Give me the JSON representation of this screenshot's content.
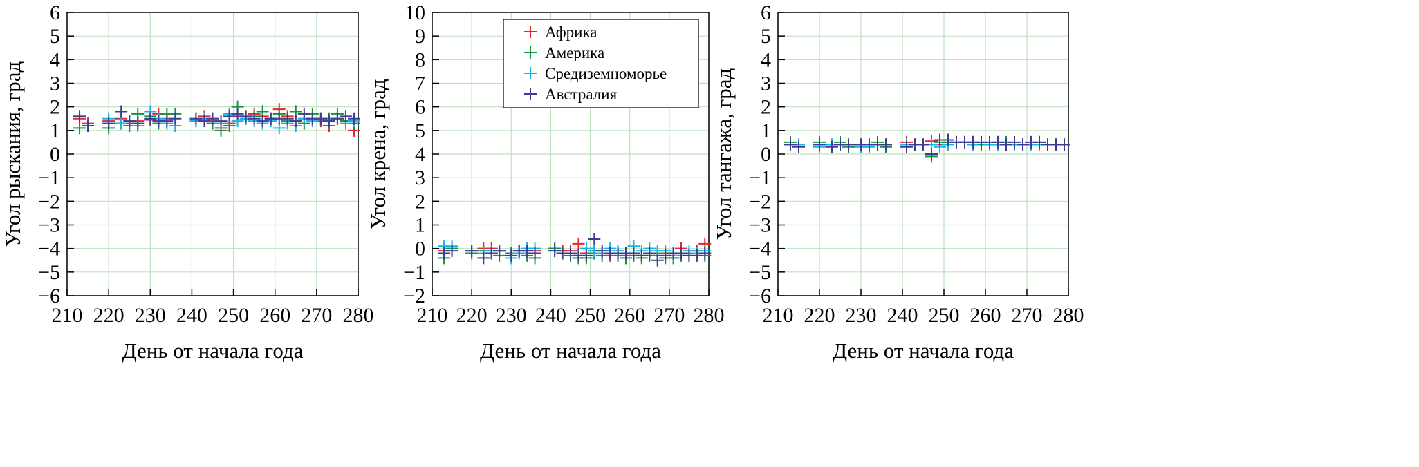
{
  "chart_data": [
    {
      "type": "scatter",
      "ylabel": "Угол рыскания, град",
      "xlabel": "День от начала года",
      "xlim": [
        210,
        280
      ],
      "ylim": [
        -6,
        6
      ],
      "xticks": [
        "210",
        "220",
        "230",
        "240",
        "250",
        "260",
        "270",
        "280"
      ],
      "yticks": [
        "-6",
        "-5",
        "-4",
        "-3",
        "-2",
        "-1",
        "0",
        "1",
        "2",
        "3",
        "4",
        "5",
        "6"
      ],
      "grid": true,
      "days": [
        213,
        215,
        220,
        223,
        225,
        227,
        230,
        232,
        234,
        236,
        241,
        243,
        245,
        247,
        249,
        251,
        253,
        255,
        257,
        259,
        261,
        263,
        265,
        267,
        269,
        271,
        273,
        275,
        277,
        279
      ],
      "series": [
        {
          "name": "Африка",
          "color": "#e8242b",
          "values": [
            1.5,
            1.3,
            1.4,
            1.5,
            1.3,
            1.4,
            1.45,
            1.7,
            1.5,
            1.2,
            1.5,
            1.6,
            1.4,
            1.1,
            1.3,
            1.6,
            1.5,
            1.7,
            1.6,
            1.5,
            1.9,
            1.6,
            1.4,
            1.5,
            1.5,
            1.4,
            1.2,
            1.5,
            1.4,
            1.0
          ]
        },
        {
          "name": "Америка",
          "color": "#14923c",
          "values": [
            1.1,
            1.2,
            1.1,
            1.3,
            1.2,
            1.7,
            1.6,
            1.3,
            1.7,
            1.7,
            1.4,
            1.5,
            1.3,
            1.0,
            1.2,
            2.0,
            1.5,
            1.6,
            1.8,
            1.5,
            1.7,
            1.4,
            1.8,
            1.3,
            1.7,
            1.5,
            1.5,
            1.7,
            1.4,
            1.3
          ]
        },
        {
          "name": "Средиземноморье",
          "color": "#14b4ea",
          "values": [
            1.6,
            1.2,
            1.5,
            1.3,
            1.4,
            1.2,
            1.8,
            1.5,
            1.3,
            1.2,
            1.4,
            1.5,
            1.5,
            1.3,
            1.7,
            1.4,
            1.5,
            1.4,
            1.3,
            1.4,
            1.1,
            1.3,
            1.2,
            1.5,
            1.4,
            1.5,
            1.4,
            1.5,
            1.3,
            1.4
          ]
        },
        {
          "name": "Австралия",
          "color": "#3c3c96",
          "values": [
            1.6,
            1.2,
            1.3,
            1.8,
            1.4,
            1.3,
            1.5,
            1.4,
            1.4,
            1.5,
            1.5,
            1.4,
            1.5,
            1.4,
            1.6,
            1.7,
            1.6,
            1.5,
            1.4,
            1.5,
            1.5,
            1.5,
            1.4,
            1.7,
            1.5,
            1.5,
            1.4,
            1.5,
            1.6,
            1.5
          ]
        }
      ]
    },
    {
      "type": "scatter",
      "ylabel": "Угол крена, град",
      "xlabel": "День от начала года",
      "xlim": [
        210,
        280
      ],
      "ylim": [
        -2,
        10
      ],
      "xticks": [
        "210",
        "220",
        "230",
        "240",
        "250",
        "260",
        "270",
        "280"
      ],
      "yticks": [
        "-2",
        "-1",
        "0",
        "1",
        "2",
        "3",
        "4",
        "5",
        "6",
        "7",
        "8",
        "9",
        "10"
      ],
      "grid": true,
      "legend": "top-center",
      "days": [
        213,
        215,
        220,
        223,
        225,
        227,
        230,
        232,
        234,
        236,
        241,
        243,
        245,
        247,
        249,
        251,
        253,
        255,
        257,
        259,
        261,
        263,
        265,
        267,
        269,
        271,
        273,
        275,
        277,
        279
      ],
      "series": [
        {
          "name": "Африка",
          "color": "#e8242b",
          "values": [
            -0.1,
            0.0,
            -0.1,
            0.0,
            0.0,
            -0.1,
            -0.2,
            -0.1,
            -0.2,
            -0.1,
            0.0,
            -0.1,
            -0.1,
            0.2,
            -0.2,
            -0.1,
            -0.2,
            -0.3,
            -0.2,
            -0.3,
            -0.2,
            -0.3,
            -0.2,
            -0.3,
            -0.2,
            -0.3,
            0.0,
            -0.2,
            -0.1,
            0.2
          ]
        },
        {
          "name": "Америка",
          "color": "#14923c",
          "values": [
            -0.4,
            0.0,
            -0.2,
            -0.1,
            -0.2,
            -0.3,
            -0.2,
            -0.1,
            -0.3,
            -0.4,
            0.0,
            -0.2,
            -0.3,
            -0.4,
            -0.4,
            -0.2,
            -0.3,
            -0.2,
            -0.3,
            -0.4,
            -0.3,
            -0.4,
            -0.3,
            -0.2,
            -0.4,
            -0.4,
            -0.3,
            -0.3,
            -0.2,
            -0.3
          ]
        },
        {
          "name": "Средиземноморье",
          "color": "#14b4ea",
          "values": [
            0.1,
            0.1,
            -0.1,
            -0.2,
            -0.1,
            -0.1,
            -0.4,
            -0.2,
            0.0,
            0.0,
            -0.1,
            -0.2,
            -0.2,
            -0.3,
            0.0,
            -0.1,
            -0.2,
            0.0,
            -0.1,
            -0.2,
            0.1,
            -0.1,
            0.0,
            -0.1,
            -0.1,
            -0.3,
            -0.2,
            -0.1,
            -0.2,
            -0.1
          ]
        },
        {
          "name": "Австралия",
          "color": "#3c3c96",
          "values": [
            -0.2,
            -0.1,
            -0.1,
            -0.4,
            -0.2,
            -0.1,
            -0.3,
            -0.1,
            -0.1,
            -0.2,
            -0.1,
            -0.2,
            -0.2,
            -0.3,
            -0.3,
            0.4,
            -0.1,
            -0.2,
            -0.2,
            -0.2,
            -0.2,
            -0.3,
            -0.2,
            -0.5,
            -0.3,
            -0.2,
            -0.2,
            -0.3,
            -0.3,
            -0.2
          ]
        }
      ]
    },
    {
      "type": "scatter",
      "ylabel": "Угол тангажа, град",
      "xlabel": "День от начала года",
      "xlim": [
        210,
        280
      ],
      "ylim": [
        -6,
        6
      ],
      "xticks": [
        "210",
        "220",
        "230",
        "240",
        "250",
        "260",
        "270",
        "280"
      ],
      "yticks": [
        "-6",
        "-5",
        "-4",
        "-3",
        "-2",
        "-1",
        "0",
        "1",
        "2",
        "3",
        "4",
        "5",
        "6"
      ],
      "grid": true,
      "days": [
        213,
        215,
        220,
        223,
        225,
        227,
        230,
        232,
        234,
        236,
        241,
        243,
        245,
        247,
        249,
        251,
        253,
        255,
        257,
        259,
        261,
        263,
        265,
        267,
        269,
        271,
        273,
        275,
        277,
        279
      ],
      "series": [
        {
          "name": "Африка",
          "color": "#e8242b",
          "values": [
            0.4,
            0.4,
            0.4,
            0.4,
            0.4,
            0.4,
            0.4,
            0.4,
            0.4,
            0.4,
            0.5,
            0.4,
            0.4,
            0.55,
            0.4,
            0.5,
            0.5,
            0.5,
            0.5,
            0.4,
            0.4,
            0.5,
            0.4,
            0.4,
            0.4,
            0.4,
            0.5,
            0.4,
            0.4,
            0.4
          ]
        },
        {
          "name": "Америка",
          "color": "#14923c",
          "values": [
            0.5,
            0.4,
            0.5,
            0.4,
            0.5,
            0.3,
            0.4,
            0.4,
            0.5,
            0.3,
            0.4,
            0.4,
            0.4,
            -0.1,
            0.5,
            0.5,
            0.5,
            0.5,
            0.4,
            0.4,
            0.4,
            0.4,
            0.5,
            0.4,
            0.4,
            0.4,
            0.5,
            0.4,
            0.4,
            0.4
          ]
        },
        {
          "name": "Средиземноморье",
          "color": "#14b4ea",
          "values": [
            0.4,
            0.4,
            0.3,
            0.4,
            0.4,
            0.4,
            0.3,
            0.3,
            0.4,
            0.4,
            0.4,
            0.4,
            0.4,
            0.4,
            0.3,
            0.4,
            0.5,
            0.5,
            0.4,
            0.5,
            0.4,
            0.4,
            0.4,
            0.4,
            0.4,
            0.4,
            0.4,
            0.4,
            0.4,
            0.4
          ]
        },
        {
          "name": "Австралия",
          "color": "#3c3c96",
          "values": [
            0.4,
            0.3,
            0.4,
            0.3,
            0.4,
            0.4,
            0.4,
            0.4,
            0.4,
            0.4,
            0.3,
            0.4,
            0.4,
            0.0,
            0.6,
            0.6,
            0.5,
            0.5,
            0.5,
            0.5,
            0.5,
            0.5,
            0.4,
            0.5,
            0.4,
            0.5,
            0.5,
            0.4,
            0.4,
            0.4
          ]
        }
      ]
    }
  ]
}
